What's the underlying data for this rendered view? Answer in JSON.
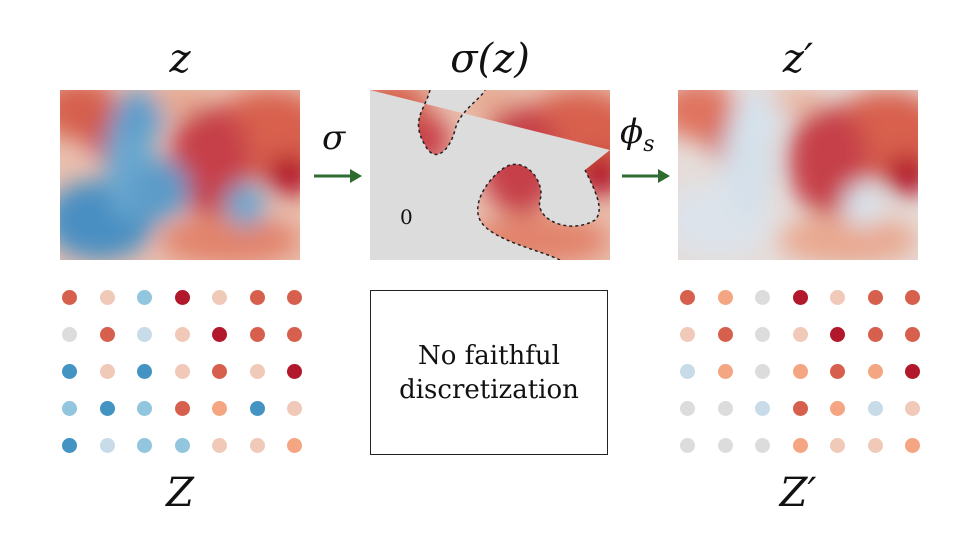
{
  "titles": {
    "left": "z",
    "middle": "σ(z)",
    "right": "z′"
  },
  "bottom_labels": {
    "left": "Z",
    "right": "Z′"
  },
  "arrows": {
    "sigma": "σ",
    "phi": "ϕ",
    "phi_sub": "s"
  },
  "middle_panel": {
    "zero_label": "0",
    "no_discretization": "No faithful discretization"
  },
  "colors": {
    "deep_red": "#b2182b",
    "red": "#d6604d",
    "light_red": "#f4a582",
    "pale_red": "#f0c9b8",
    "neutral": "#dcdcdc",
    "pale_blue": "#c7dbe8",
    "light_blue": "#92c5de",
    "blue": "#4393c3",
    "arrow_green": "#2e6b2e"
  },
  "grid_left": [
    [
      "red",
      "pale_red",
      "light_blue",
      "deep_red",
      "pale_red",
      "red",
      "red"
    ],
    [
      "neutral",
      "red",
      "pale_blue",
      "pale_red",
      "deep_red",
      "red",
      "red"
    ],
    [
      "blue",
      "pale_red",
      "blue",
      "pale_red",
      "red",
      "pale_red",
      "deep_red"
    ],
    [
      "light_blue",
      "blue",
      "light_blue",
      "red",
      "light_red",
      "blue",
      "pale_red"
    ],
    [
      "blue",
      "pale_blue",
      "light_blue",
      "light_blue",
      "pale_red",
      "pale_red",
      "light_red"
    ]
  ],
  "grid_right": [
    [
      "red",
      "light_red",
      "neutral",
      "deep_red",
      "pale_red",
      "red",
      "red"
    ],
    [
      "pale_red",
      "red",
      "neutral",
      "pale_red",
      "deep_red",
      "red",
      "red"
    ],
    [
      "pale_blue",
      "light_red",
      "neutral",
      "light_red",
      "red",
      "light_red",
      "deep_red"
    ],
    [
      "neutral",
      "neutral",
      "pale_blue",
      "red",
      "light_red",
      "pale_blue",
      "pale_red"
    ],
    [
      "neutral",
      "neutral",
      "neutral",
      "light_red",
      "pale_red",
      "pale_red",
      "light_red"
    ]
  ]
}
